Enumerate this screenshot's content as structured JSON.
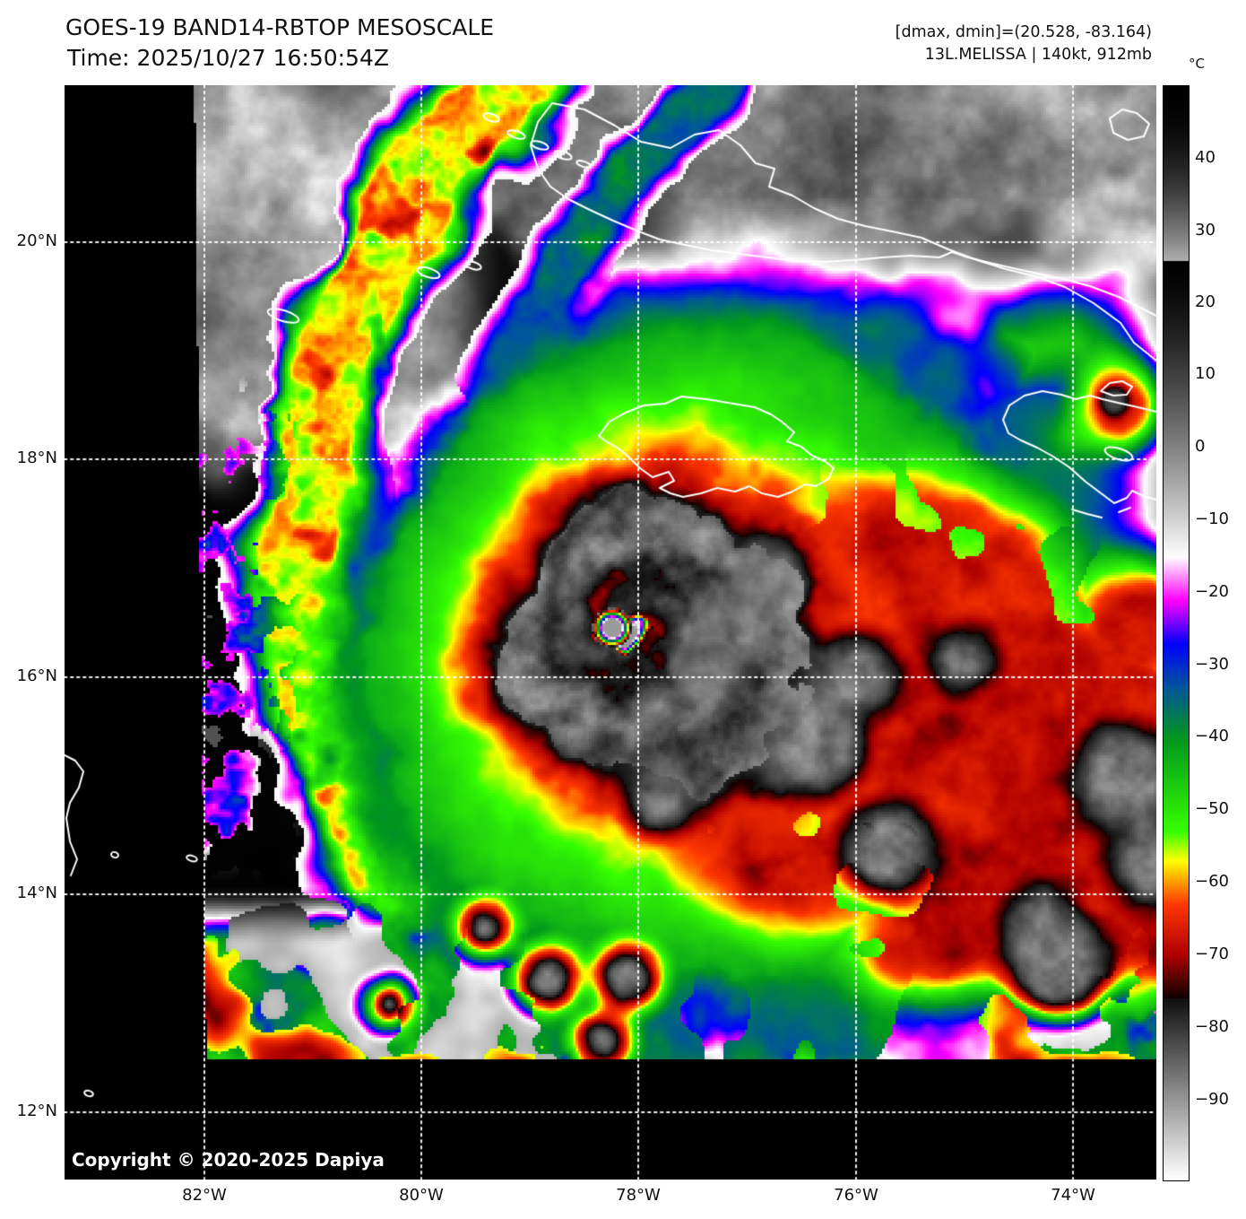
{
  "header": {
    "title": "GOES-19 BAND14-RBTOP MESOSCALE",
    "time_line": "Time: 2025/10/27 16:50:54Z",
    "range_line": "[dmax, dmin]=(20.528, -83.164)",
    "storm_line": "13L.MELISSA | 140kt, 912mb"
  },
  "colorbar": {
    "unit": "°C",
    "ticks": [
      "40",
      "30",
      "20",
      "10",
      "0",
      "−10",
      "−20",
      "−30",
      "−40",
      "−50",
      "−60",
      "−70",
      "−80",
      "−90"
    ]
  },
  "map": {
    "lat_ticks": [
      "20°N",
      "18°N",
      "16°N",
      "14°N",
      "12°N"
    ],
    "lon_ticks": [
      "82°W",
      "80°W",
      "78°W",
      "76°W",
      "74°W"
    ],
    "copyright": "Copyright © 2020-2025 Dapiya"
  },
  "colors": {
    "page_background": "#ffffff",
    "map_background": "#000000",
    "coastline": "#ffffff",
    "gridline": "#ffffff",
    "text": "#111111"
  }
}
